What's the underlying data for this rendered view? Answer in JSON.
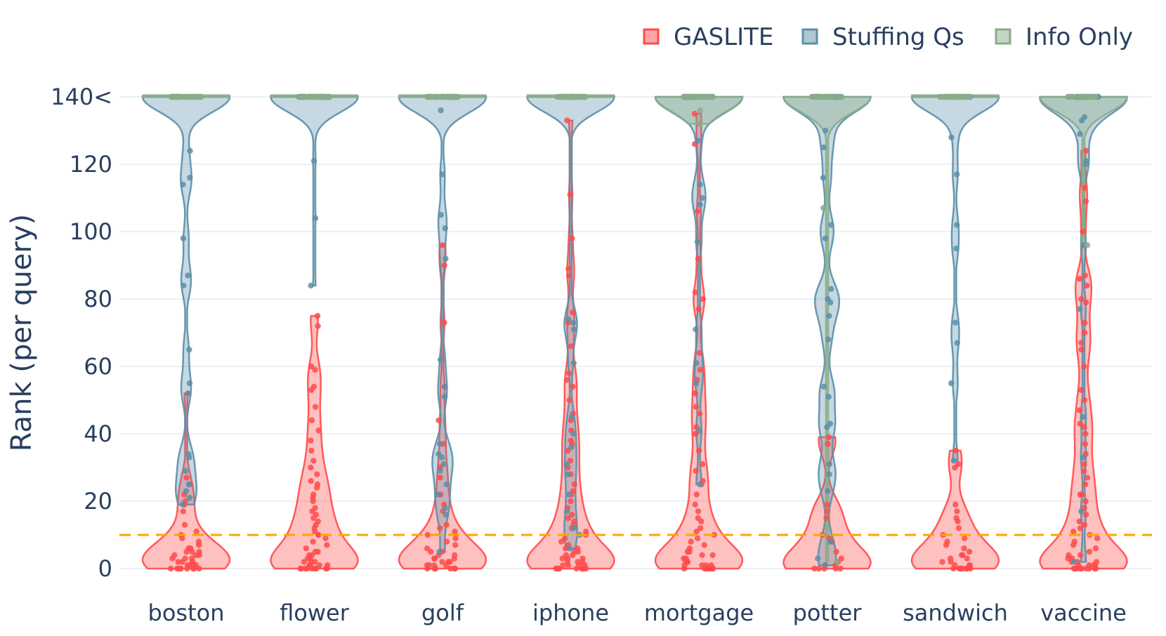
{
  "chart_data": {
    "type": "violin",
    "title": "",
    "xlabel": "",
    "ylabel": "Rank (per query)",
    "ylim": [
      0,
      140
    ],
    "yticks": [
      {
        "value": 0,
        "label": "0"
      },
      {
        "value": 20,
        "label": "20"
      },
      {
        "value": 40,
        "label": "40"
      },
      {
        "value": 60,
        "label": "60"
      },
      {
        "value": 80,
        "label": "80"
      },
      {
        "value": 100,
        "label": "100"
      },
      {
        "value": 120,
        "label": "120"
      },
      {
        "value": 140,
        "label": "140<"
      }
    ],
    "grid": true,
    "legend_position": "top-right",
    "reference_line": {
      "y": 10,
      "color": "#ffa500",
      "style": "dashed"
    },
    "categories": [
      "boston",
      "flower",
      "golf",
      "iphone",
      "mortgage",
      "potter",
      "sandwich",
      "vaccine"
    ],
    "series": [
      {
        "name": "GASLITE",
        "color": "#ff4b4b",
        "points": {
          "boston": [
            0,
            0,
            0,
            0,
            0,
            0,
            0,
            0,
            1,
            1,
            1,
            1,
            1,
            2,
            2,
            2,
            2,
            3,
            3,
            3,
            4,
            4,
            4,
            5,
            5,
            5,
            6,
            6,
            7,
            8,
            9,
            10,
            11,
            13,
            17,
            19,
            20,
            22,
            25,
            27,
            52
          ],
          "flower": [
            0,
            0,
            0,
            0,
            0,
            0,
            0,
            0,
            0,
            1,
            1,
            1,
            1,
            2,
            2,
            2,
            3,
            3,
            4,
            4,
            5,
            5,
            6,
            7,
            8,
            9,
            10,
            10,
            11,
            12,
            13,
            14,
            15,
            16,
            17,
            18,
            20,
            21,
            22,
            24,
            25,
            26,
            28,
            30,
            32,
            35,
            38,
            41,
            44,
            48,
            53,
            54,
            59,
            60,
            72,
            75
          ],
          "golf": [
            0,
            0,
            0,
            0,
            0,
            0,
            0,
            1,
            1,
            1,
            1,
            2,
            2,
            2,
            3,
            3,
            3,
            4,
            4,
            5,
            5,
            6,
            7,
            8,
            9,
            10,
            11,
            12,
            13,
            17,
            19,
            22,
            27,
            30,
            37,
            44,
            54,
            73,
            90,
            96
          ],
          "iphone": [
            0,
            0,
            0,
            0,
            0,
            0,
            0,
            0,
            0,
            0,
            1,
            1,
            1,
            1,
            2,
            2,
            2,
            3,
            3,
            3,
            4,
            4,
            5,
            5,
            6,
            6,
            7,
            8,
            9,
            10,
            11,
            12,
            13,
            14,
            15,
            16,
            18,
            20,
            22,
            23,
            25,
            28,
            30,
            32,
            35,
            37,
            38,
            41,
            44,
            46,
            50,
            54,
            56,
            58,
            66,
            73,
            76,
            87,
            89,
            98,
            111,
            133
          ],
          "mortgage": [
            0,
            0,
            0,
            0,
            0,
            0,
            0,
            0,
            1,
            1,
            1,
            1,
            2,
            2,
            2,
            3,
            3,
            4,
            4,
            5,
            5,
            6,
            7,
            8,
            9,
            10,
            11,
            12,
            14,
            15,
            17,
            19,
            22,
            25,
            26,
            29,
            31,
            35,
            40,
            42,
            46,
            48,
            52,
            56,
            59,
            64,
            77,
            80,
            82,
            92,
            106,
            126,
            135
          ],
          "potter": [
            0,
            0,
            0,
            0,
            0,
            1,
            1,
            2,
            3,
            5,
            8,
            9,
            10,
            15,
            17,
            19,
            37,
            39
          ],
          "sandwich": [
            0,
            0,
            0,
            0,
            0,
            0,
            0,
            1,
            1,
            1,
            2,
            2,
            3,
            3,
            4,
            4,
            5,
            6,
            7,
            8,
            9,
            10,
            12,
            14,
            15,
            17,
            19,
            30,
            31,
            35
          ],
          "vaccine": [
            0,
            0,
            0,
            0,
            0,
            0,
            0,
            0,
            0,
            1,
            1,
            1,
            1,
            2,
            2,
            2,
            3,
            3,
            4,
            4,
            5,
            6,
            7,
            8,
            9,
            10,
            11,
            12,
            13,
            14,
            16,
            18,
            20,
            22,
            22,
            25,
            27,
            29,
            31,
            34,
            37,
            40,
            42,
            43,
            47,
            50,
            53,
            60,
            65,
            67,
            70,
            73,
            79,
            80,
            84,
            86,
            87,
            100,
            109,
            113,
            124
          ]
        }
      },
      {
        "name": "Stuffing Qs",
        "color": "#5b8fa8",
        "points": {
          "boston": [
            19,
            21,
            23,
            25,
            29,
            33,
            34,
            52,
            55,
            65,
            84,
            87,
            98,
            114,
            116,
            124,
            140,
            140,
            140,
            140,
            140,
            140,
            140,
            140,
            140,
            140,
            140,
            140,
            140,
            140,
            140,
            140,
            140
          ],
          "flower": [
            84,
            104,
            121,
            140,
            140,
            140,
            140,
            140,
            140,
            140,
            140,
            140,
            140,
            140,
            140,
            140,
            140,
            140,
            140,
            140,
            140,
            140,
            140,
            140,
            140,
            140,
            140,
            140,
            140,
            140,
            140,
            140,
            140,
            140,
            140,
            140,
            140,
            140
          ],
          "golf": [
            5,
            16,
            18,
            22,
            25,
            29,
            31,
            33,
            34,
            37,
            51,
            54,
            62,
            92,
            101,
            105,
            117,
            136,
            140,
            140,
            140,
            140,
            140,
            140,
            140,
            140,
            140,
            140,
            140,
            140,
            140,
            140,
            140,
            140,
            140,
            140,
            140
          ],
          "iphone": [
            6,
            10,
            12,
            17,
            22,
            28,
            31,
            36,
            40,
            45,
            61,
            71,
            73,
            74,
            140,
            140,
            140,
            140,
            140,
            140,
            140,
            140,
            140,
            140,
            140,
            140,
            140,
            140,
            140,
            140,
            140,
            140,
            140,
            140
          ],
          "mortgage": [
            25,
            41,
            55,
            61,
            71,
            97,
            108,
            110,
            114,
            127,
            140,
            140,
            140,
            140,
            140,
            140,
            140,
            140,
            140,
            140,
            140,
            140,
            140,
            140,
            140,
            140,
            140
          ],
          "potter": [
            1,
            3,
            8,
            23,
            28,
            31,
            42,
            43,
            51,
            54,
            68,
            75,
            79,
            80,
            83,
            98,
            102,
            116,
            125,
            130,
            140,
            140,
            140,
            140,
            140,
            140,
            140,
            140,
            140,
            140,
            140,
            140
          ],
          "sandwich": [
            32,
            55,
            67,
            73,
            95,
            102,
            117,
            128,
            140,
            140,
            140,
            140,
            140,
            140,
            140,
            140,
            140,
            140,
            140,
            140,
            140,
            140,
            140,
            140,
            140,
            140
          ],
          "vaccine": [
            2,
            17,
            33,
            45,
            77,
            96,
            120,
            121,
            129,
            133,
            134,
            140,
            140,
            140,
            140,
            140,
            140,
            140,
            140,
            140,
            140,
            140,
            140,
            140,
            140,
            140,
            140,
            140
          ]
        }
      },
      {
        "name": "Info Only",
        "color": "#8aab88",
        "points": {
          "boston": [
            140,
            140,
            140,
            140,
            140,
            140,
            140,
            140,
            140,
            140,
            140,
            140,
            140,
            140,
            140,
            140,
            140,
            140,
            140,
            140,
            140,
            140,
            140,
            140,
            140,
            140,
            140,
            140,
            140,
            140
          ],
          "flower": [
            140,
            140,
            140,
            140,
            140,
            140,
            140,
            140,
            140,
            140,
            140,
            140,
            140,
            140,
            140,
            140,
            140,
            140,
            140,
            140,
            140,
            140,
            140,
            140,
            140,
            140,
            140,
            140,
            140,
            140
          ],
          "golf": [
            140,
            140,
            140,
            140,
            140,
            140,
            140,
            140,
            140,
            140,
            140,
            140,
            140,
            140,
            140,
            140,
            140,
            140,
            140,
            140,
            140,
            140,
            140,
            140,
            140,
            140,
            140,
            140,
            140,
            140
          ],
          "iphone": [
            140,
            140,
            140,
            140,
            140,
            140,
            140,
            140,
            140,
            140,
            140,
            140,
            140,
            140,
            140,
            140,
            140,
            140,
            140,
            140,
            140,
            140,
            140,
            140,
            140,
            140,
            140,
            140,
            140,
            140
          ],
          "mortgage": [
            132,
            136,
            140,
            140,
            140,
            140,
            140,
            140,
            140,
            140,
            140,
            140,
            140,
            140,
            140,
            140,
            140,
            140,
            140,
            140,
            140,
            140,
            140,
            140,
            140,
            140,
            140,
            140,
            140,
            140,
            140,
            140,
            140,
            140,
            140,
            140,
            140,
            140,
            140
          ],
          "potter": [
            2,
            107,
            140,
            140,
            140,
            140,
            140,
            140,
            140,
            140,
            140,
            140,
            140,
            140,
            140,
            140,
            140,
            140,
            140,
            140,
            140,
            140,
            140,
            140,
            140,
            140,
            140,
            140,
            140,
            140,
            140,
            140,
            140,
            140,
            140,
            140,
            140,
            140,
            140
          ],
          "sandwich": [
            140,
            140,
            140,
            140,
            140,
            140,
            140,
            140,
            140,
            140,
            140,
            140,
            140,
            140,
            140,
            140,
            140,
            140,
            140,
            140,
            140,
            140,
            140,
            140,
            140,
            140,
            140,
            140,
            140,
            140
          ],
          "vaccine": [
            96,
            140,
            140,
            140,
            140,
            140,
            140,
            140,
            140,
            140,
            140,
            140,
            140,
            140,
            140,
            140,
            140,
            140,
            140,
            140,
            140,
            140,
            140,
            140,
            140,
            140,
            140,
            140,
            140,
            140
          ]
        }
      }
    ]
  }
}
